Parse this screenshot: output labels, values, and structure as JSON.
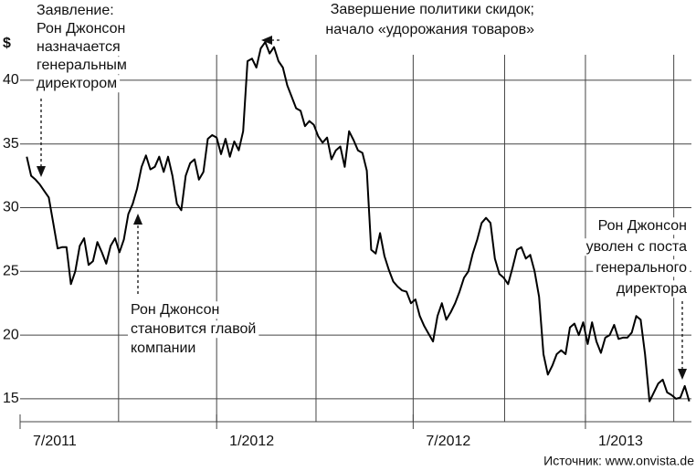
{
  "chart_data": {
    "type": "line",
    "y_unit": "$",
    "source": "Источник: www.onvista.de",
    "annotations": [
      {
        "lines": [
          "Заявление:",
          "Рон Джонсон",
          "назначается",
          "генеральным",
          "директором"
        ]
      },
      {
        "lines": [
          "Завершение политики скидок;",
          "начало «удорожания товаров»"
        ]
      },
      {
        "lines": [
          "Рон Джонсон",
          "становится главой",
          "компании"
        ]
      },
      {
        "lines": [
          "Рон Джонсон",
          "уволен с поста",
          "генерального",
          "директора"
        ]
      }
    ],
    "color": "#000000",
    "values": [
      34,
      32.5,
      32.2,
      31.8,
      31.3,
      30.8,
      28.8,
      26.8,
      26.9,
      26.9,
      24,
      25,
      27,
      27.6,
      25.5,
      25.8,
      27.3,
      26.5,
      25.6,
      27,
      27.6,
      26.5,
      27.5,
      29.5,
      30.3,
      31.5,
      33.2,
      34.1,
      33,
      33.2,
      34,
      32.8,
      34,
      32.5,
      30.3,
      29.8,
      32.5,
      33.5,
      33.8,
      32.2,
      32.8,
      35.4,
      35.7,
      35.5,
      34.2,
      35.4,
      34,
      35.2,
      34.5,
      36,
      41.5,
      41.7,
      41,
      42.5,
      43,
      42.1,
      42.6,
      41.5,
      41,
      39.6,
      38.7,
      37.8,
      37.6,
      36.4,
      36.8,
      36.5,
      35.6,
      35.1,
      35.5,
      33.8,
      34.5,
      34.8,
      33.2,
      36,
      35.3,
      34.5,
      34.3,
      32.9,
      26.7,
      26.4,
      28,
      26.2,
      25.1,
      24.2,
      23.8,
      23.5,
      23.4,
      22.5,
      22.8,
      21.5,
      20.7,
      20.1,
      19.5,
      21.5,
      22.5,
      21.2,
      21.8,
      22.5,
      23.4,
      24.5,
      25,
      26.4,
      27.5,
      28.8,
      29.2,
      28.8,
      26,
      24.8,
      24.5,
      24,
      25.3,
      26.7,
      26.9,
      26,
      26.3,
      25,
      23,
      18.5,
      16.9,
      17.6,
      18.5,
      18.8,
      18.5,
      20.6,
      20.9,
      20,
      21,
      19.3,
      21,
      19.5,
      18.6,
      19.8,
      20,
      20.8,
      19.7,
      19.8,
      19.8,
      20.2,
      21.5,
      21.2,
      18.5,
      14.8,
      15.5,
      16.2,
      16.5,
      15.5,
      15.3,
      15,
      15.1,
      16,
      14.8
    ],
    "xlim": [
      -1.5,
      150.5
    ],
    "xticks": [
      {
        "value": -1.5,
        "label": "7/2011"
      },
      {
        "value": 43,
        "label": "1/2012"
      },
      {
        "value": 87.5,
        "label": "7/2012"
      },
      {
        "value": 126.5,
        "label": "1/2013"
      }
    ],
    "xgrid": [
      20.8,
      43,
      65.5,
      87.5,
      108.2,
      126.5,
      146.5
    ],
    "ylim": [
      13.2,
      46.3
    ],
    "yticks": [
      15,
      20,
      25,
      30,
      35,
      40
    ],
    "grid": true
  }
}
